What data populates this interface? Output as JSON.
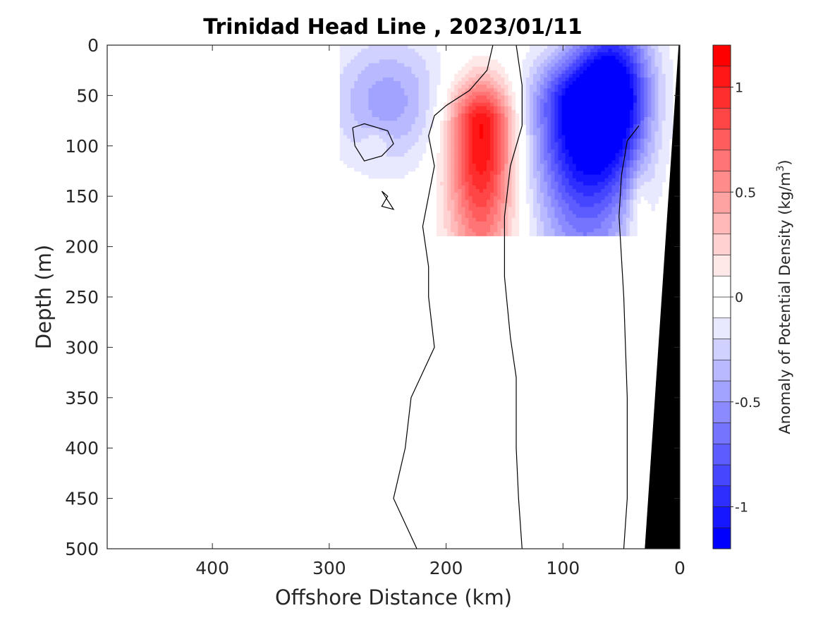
{
  "chart_data": {
    "type": "contour",
    "title": "Trinidad Head Line , 2023/01/11",
    "xlabel": "Offshore Distance (km)",
    "ylabel": "Depth (m)",
    "xlim": [
      490,
      0
    ],
    "ylim": [
      500,
      0
    ],
    "x_reversed": true,
    "y_reversed": true,
    "xticks": [
      400,
      300,
      200,
      100,
      0
    ],
    "xtick_labels": [
      "400",
      "300",
      "200",
      "100",
      "0"
    ],
    "yticks": [
      0,
      50,
      100,
      150,
      200,
      250,
      300,
      350,
      400,
      450,
      500
    ],
    "ytick_labels": [
      "0",
      "50",
      "100",
      "150",
      "200",
      "250",
      "300",
      "350",
      "400",
      "450",
      "500"
    ],
    "colorbar": {
      "label_prefix": "Anomaly of Potential Density (kg/m",
      "label_exp": "3",
      "label_suffix": ")",
      "range": [
        -1.2,
        1.2
      ],
      "step": 0.1,
      "ticks": [
        -1,
        -0.5,
        0,
        0.5,
        1
      ],
      "tick_labels": [
        "-1",
        "-0.5",
        "0",
        "0.5",
        "1"
      ],
      "neg_color": "#0000ff",
      "pos_color": "#ff0000"
    },
    "features": [
      {
        "kind": "anomaly",
        "x": 170,
        "depth": 82,
        "peak": 1.15,
        "sx": 20,
        "sy_shallow": 34,
        "sy_deep": 95
      },
      {
        "kind": "anomaly",
        "x": 85,
        "depth": 62,
        "peak": -1.05,
        "sx": 30,
        "sy_shallow": 35,
        "sy_deep": 80
      },
      {
        "kind": "anomaly",
        "x": 55,
        "depth": 40,
        "peak": -0.9,
        "sx": 22,
        "sy_shallow": 60,
        "sy_deep": 60
      },
      {
        "kind": "anomaly",
        "x": 80,
        "depth": 250,
        "peak": -0.3,
        "sx": 28,
        "sy_shallow": 150,
        "sy_deep": 150
      },
      {
        "kind": "anomaly",
        "x": 250,
        "depth": 55,
        "peak": -0.45,
        "sx": 35,
        "sy_shallow": 45,
        "sy_deep": 45
      },
      {
        "kind": "anomaly",
        "x": 260,
        "depth": 95,
        "peak": 0.15,
        "sx": 8,
        "sy_shallow": 8,
        "sy_deep": 8
      },
      {
        "kind": "anomaly",
        "x": 35,
        "depth": 160,
        "peak": 0.2,
        "sx": 6,
        "sy_shallow": 25,
        "sy_deep": 25
      }
    ],
    "data_extent": [
      {
        "depth": 0,
        "x": 290
      },
      {
        "depth": 190,
        "x": 290
      },
      {
        "depth": 191,
        "x": 0
      }
    ],
    "zero_contours": [
      [
        [
          160,
          0
        ],
        [
          165,
          25
        ],
        [
          180,
          45
        ],
        [
          200,
          60
        ],
        [
          210,
          70
        ],
        [
          215,
          90
        ],
        [
          210,
          120
        ],
        [
          215,
          150
        ],
        [
          220,
          180
        ],
        [
          215,
          220
        ],
        [
          215,
          250
        ],
        [
          210,
          300
        ],
        [
          230,
          350
        ],
        [
          235,
          400
        ],
        [
          245,
          450
        ],
        [
          225,
          500
        ]
      ],
      [
        [
          140,
          0
        ],
        [
          135,
          40
        ],
        [
          135,
          80
        ],
        [
          145,
          120
        ],
        [
          150,
          170
        ],
        [
          150,
          230
        ],
        [
          145,
          290
        ],
        [
          140,
          330
        ],
        [
          140,
          400
        ],
        [
          138,
          450
        ],
        [
          135,
          500
        ]
      ],
      [
        [
          35,
          80
        ],
        [
          45,
          95
        ],
        [
          50,
          130
        ],
        [
          52,
          170
        ],
        [
          48,
          250
        ],
        [
          45,
          350
        ],
        [
          45,
          450
        ],
        [
          48,
          500
        ]
      ],
      [
        [
          280,
          82
        ],
        [
          270,
          78
        ],
        [
          250,
          85
        ],
        [
          245,
          98
        ],
        [
          255,
          110
        ],
        [
          270,
          115
        ],
        [
          278,
          100
        ],
        [
          280,
          82
        ]
      ],
      [
        [
          255,
          145
        ],
        [
          250,
          150
        ],
        [
          255,
          160
        ],
        [
          245,
          163
        ],
        [
          255,
          145
        ]
      ]
    ],
    "land": [
      [
        30,
        500
      ],
      [
        1,
        0
      ],
      [
        0,
        0
      ],
      [
        0,
        500
      ]
    ]
  }
}
